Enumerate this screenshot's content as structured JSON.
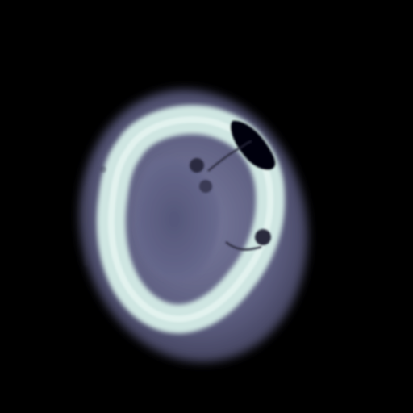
{
  "image": {
    "kind": "axial CT slice (bone colormap)",
    "palette": {
      "background": "#000000",
      "soft_tissue_outer": "#4a4a68",
      "soft_tissue_inner": "#6a6b8c",
      "bone": "#d6ece8",
      "bone_highlight": "#eefaf7",
      "brain": "#5e6084",
      "air": "#06060c"
    }
  }
}
